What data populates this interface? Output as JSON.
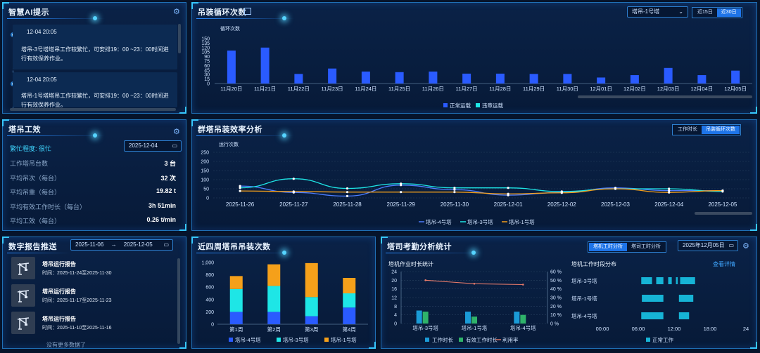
{
  "ai": {
    "title": "智慧AI提示",
    "items": [
      {
        "time": "12-04 20:05",
        "text1": "塔吊-3号塔塔吊工作较繁忙，可安排19：00 ~23：00时间进",
        "text2": "行有效保养作业。"
      },
      {
        "time": "12-04 20:05",
        "text1": "塔吊-1号塔塔吊工作较繁忙，可安排19：00 ~23：00时间进",
        "text2": "行有效保养作业。"
      }
    ]
  },
  "cycle": {
    "title": "吊装循环次数",
    "select": "塔吊-1号塔",
    "tabs": [
      "近15日",
      "近30日"
    ],
    "unit_label": "循环次数"
  },
  "crane": {
    "title": "塔吊工效",
    "busy_label": "繁忙程度: 很忙",
    "date": "2025-12-04",
    "rows": [
      {
        "label": "工作塔吊台数",
        "value": "3 台"
      },
      {
        "label": "平均吊次（每台）",
        "value": "32 次"
      },
      {
        "label": "平均吊重（每台）",
        "value": "19.82 t"
      },
      {
        "label": "平均有效工作时长（每台）",
        "value": "3h 51min"
      },
      {
        "label": "平均工效（每台）",
        "value": "0.26 t/min"
      }
    ]
  },
  "group": {
    "title": "群塔吊装效率分析",
    "tabs": [
      "工作时长",
      "吊装循环次数"
    ],
    "unit_label": "运行次数"
  },
  "report": {
    "title": "数字报告推送",
    "date_from": "2025-11-06",
    "arrow": "→",
    "date_to": "2025-12-05",
    "items": [
      {
        "name": "塔吊运行报告",
        "time": "时间：2025-11-24至2025-11-30"
      },
      {
        "name": "塔吊运行报告",
        "time": "时间：2025-11-17至2025-11-23"
      },
      {
        "name": "塔吊运行报告",
        "time": "时间：2025-11-10至2025-11-16"
      }
    ],
    "more": "没有更多数据了"
  },
  "weekly": {
    "title": "近四周塔吊吊装次数"
  },
  "attendance": {
    "title": "塔司考勤分析统计",
    "tabs": [
      "塔机工时分析",
      "塔司工时分析"
    ],
    "date": "2025年12月05日",
    "left_title": "塔机作业时长统计",
    "right_title": "塔机工作时段分布",
    "detail_link": "查看详情"
  },
  "colors": {
    "blue": "#2a5bff",
    "cyan": "#1ee6e6",
    "orange": "#f5a01a",
    "green": "#2fb36a",
    "accent": "#1e74e8"
  },
  "chart_data": [
    {
      "type": "bar",
      "title": "吊装循环次数",
      "ylabel": "循环次数",
      "ylim": [
        0,
        150
      ],
      "yticks": [
        0,
        15,
        30,
        45,
        60,
        75,
        90,
        105,
        120,
        135,
        150
      ],
      "categories": [
        "11月20日",
        "11月21日",
        "11月22日",
        "11月23日",
        "11月24日",
        "11月25日",
        "11月26日",
        "11月27日",
        "11月28日",
        "11月29日",
        "11月30日",
        "12月01日",
        "12月02日",
        "12月03日",
        "12月04日",
        "12月05日"
      ],
      "series": [
        {
          "name": "正常运载",
          "values": [
            110,
            120,
            32,
            50,
            40,
            38,
            40,
            33,
            33,
            32,
            32,
            20,
            28,
            52,
            28,
            43
          ]
        },
        {
          "name": "违章运载",
          "values": [
            0,
            0,
            0,
            0,
            0,
            0,
            0,
            0,
            0,
            0,
            0,
            0,
            0,
            0,
            0,
            0
          ]
        }
      ],
      "legend": [
        "正常运载",
        "违章运载"
      ]
    },
    {
      "type": "line",
      "title": "群塔吊装效率分析",
      "ylabel": "运行次数",
      "ylim": [
        0,
        250
      ],
      "yticks": [
        0,
        50,
        100,
        150,
        200,
        250
      ],
      "categories": [
        "2025-11-26",
        "2025-11-27",
        "2025-11-28",
        "2025-11-29",
        "2025-11-30",
        "2025-12-01",
        "2025-12-02",
        "2025-12-03",
        "2025-12-04",
        "2025-12-05"
      ],
      "series": [
        {
          "name": "塔吊-4号塔",
          "values": [
            65,
            30,
            10,
            70,
            45,
            15,
            30,
            55,
            40,
            40
          ]
        },
        {
          "name": "塔吊-3号塔",
          "values": [
            55,
            105,
            52,
            78,
            55,
            55,
            35,
            50,
            50,
            35
          ]
        },
        {
          "name": "塔吊-1号塔",
          "values": [
            38,
            35,
            32,
            32,
            32,
            22,
            28,
            50,
            30,
            40
          ]
        }
      ]
    },
    {
      "type": "bar",
      "stacked": true,
      "title": "近四周塔吊吊装次数",
      "ylim": [
        0,
        1000
      ],
      "yticks": [
        "0",
        "200",
        "400",
        "600",
        "800",
        "1,000"
      ],
      "categories": [
        "第1周",
        "第2周",
        "第3周",
        "第4周"
      ],
      "series": [
        {
          "name": "塔吊-4号塔",
          "values": [
            200,
            200,
            130,
            270
          ]
        },
        {
          "name": "塔吊-3号塔",
          "values": [
            370,
            420,
            310,
            230
          ]
        },
        {
          "name": "塔吊-1号塔",
          "values": [
            210,
            350,
            550,
            250
          ]
        }
      ]
    },
    {
      "type": "bar",
      "title": "塔机作业时长统计",
      "ylim": [
        0,
        24
      ],
      "yticks": [
        0,
        4,
        8,
        12,
        16,
        20,
        24
      ],
      "y2ticks": [
        "0 %",
        "10 %",
        "20 %",
        "30 %",
        "40 %",
        "50 %",
        "60 %"
      ],
      "categories": [
        "塔吊-3号塔",
        "塔吊-1号塔",
        "塔吊-4号塔"
      ],
      "series": [
        {
          "name": "工作时长",
          "values": [
            6,
            5.5,
            5.5
          ]
        },
        {
          "name": "有效工作时长",
          "values": [
            5.5,
            3.2,
            4
          ]
        },
        {
          "name": "利用率",
          "values": [
            50,
            46,
            45
          ]
        }
      ]
    },
    {
      "type": "bar",
      "title": "塔机工作时段分布",
      "categories": [
        "塔吊-3号塔",
        "塔吊-1号塔",
        "塔吊-4号塔"
      ],
      "xticks": [
        "00:00",
        "06:00",
        "12:00",
        "18:00",
        "24"
      ],
      "series": [
        {
          "name": "正常工作",
          "ranges": [
            [
              [
                6.5,
                8.3
              ],
              [
                9,
                10.2
              ],
              [
                11,
                11.6
              ],
              [
                12.3,
                12.6
              ],
              [
                13,
                15.5
              ]
            ],
            [
              [
                6.6,
                10.2
              ],
              [
                12.8,
                15.2
              ]
            ],
            [
              [
                6.5,
                10.2
              ],
              [
                12.8,
                14.5
              ]
            ]
          ]
        }
      ]
    }
  ]
}
